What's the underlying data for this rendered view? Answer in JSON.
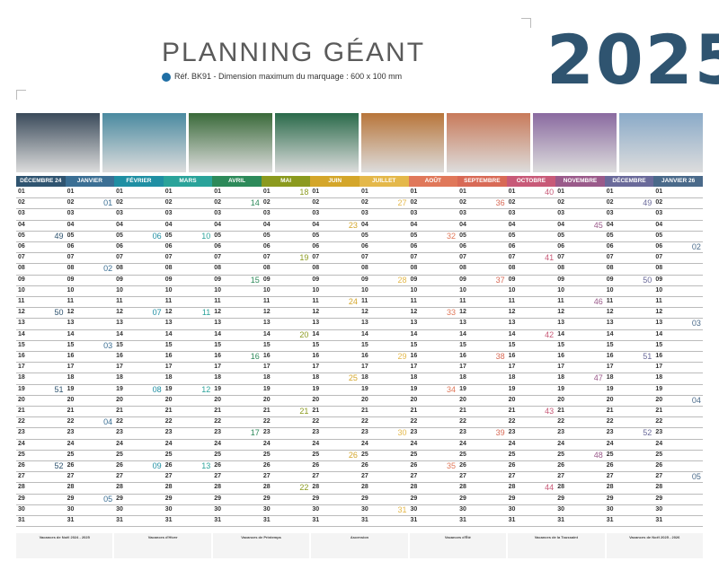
{
  "header": {
    "title": "PLANNING GÉANT",
    "subtitle": "Réf. BK91 - Dimension maximum du marquage : 600 x 100 mm",
    "year": "2025"
  },
  "months": [
    {
      "name": "DÉCEMBRE 24",
      "color": "#2f5470",
      "weeks": [
        {
          "row": 4,
          "n": "49"
        },
        {
          "row": 11,
          "n": "50"
        },
        {
          "row": 18,
          "n": "51"
        },
        {
          "row": 25,
          "n": "52"
        }
      ]
    },
    {
      "name": "JANVIER",
      "color": "#3b6f94",
      "weeks": [
        {
          "row": 1,
          "n": "01"
        },
        {
          "row": 7,
          "n": "02"
        },
        {
          "row": 14,
          "n": "03"
        },
        {
          "row": 21,
          "n": "04"
        },
        {
          "row": 28,
          "n": "05"
        }
      ]
    },
    {
      "name": "FÉVRIER",
      "color": "#1f8fa3",
      "weeks": [
        {
          "row": 4,
          "n": "06"
        },
        {
          "row": 11,
          "n": "07"
        },
        {
          "row": 18,
          "n": "08"
        },
        {
          "row": 25,
          "n": "09"
        }
      ]
    },
    {
      "name": "MARS",
      "color": "#2aa39a",
      "weeks": [
        {
          "row": 4,
          "n": "10"
        },
        {
          "row": 11,
          "n": "11"
        },
        {
          "row": 18,
          "n": "12"
        },
        {
          "row": 25,
          "n": "13"
        }
      ]
    },
    {
      "name": "AVRIL",
      "color": "#2d8a5a",
      "weeks": [
        {
          "row": 1,
          "n": "14"
        },
        {
          "row": 8,
          "n": "15"
        },
        {
          "row": 15,
          "n": "16"
        },
        {
          "row": 22,
          "n": "17"
        }
      ]
    },
    {
      "name": "MAI",
      "color": "#8b9a1e",
      "weeks": [
        {
          "row": 0,
          "n": "18"
        },
        {
          "row": 6,
          "n": "19"
        },
        {
          "row": 13,
          "n": "20"
        },
        {
          "row": 20,
          "n": "21"
        },
        {
          "row": 27,
          "n": "22"
        }
      ]
    },
    {
      "name": "JUIN",
      "color": "#d4a62a",
      "weeks": [
        {
          "row": 3,
          "n": "23"
        },
        {
          "row": 10,
          "n": "24"
        },
        {
          "row": 17,
          "n": "25"
        },
        {
          "row": 24,
          "n": "26"
        }
      ]
    },
    {
      "name": "JUILLET",
      "color": "#e4b84a",
      "weeks": [
        {
          "row": 1,
          "n": "27"
        },
        {
          "row": 8,
          "n": "28"
        },
        {
          "row": 15,
          "n": "29"
        },
        {
          "row": 22,
          "n": "30"
        },
        {
          "row": 29,
          "n": "31"
        }
      ]
    },
    {
      "name": "AOÛT",
      "color": "#e0785a",
      "weeks": [
        {
          "row": 4,
          "n": "32"
        },
        {
          "row": 11,
          "n": "33"
        },
        {
          "row": 18,
          "n": "34"
        },
        {
          "row": 25,
          "n": "35"
        }
      ]
    },
    {
      "name": "SEPTEMBRE",
      "color": "#d86a56",
      "weeks": [
        {
          "row": 1,
          "n": "36"
        },
        {
          "row": 8,
          "n": "37"
        },
        {
          "row": 15,
          "n": "38"
        },
        {
          "row": 22,
          "n": "39"
        }
      ]
    },
    {
      "name": "OCTOBRE",
      "color": "#c85a78",
      "weeks": [
        {
          "row": 0,
          "n": "40"
        },
        {
          "row": 6,
          "n": "41"
        },
        {
          "row": 13,
          "n": "42"
        },
        {
          "row": 20,
          "n": "43"
        },
        {
          "row": 27,
          "n": "44"
        }
      ]
    },
    {
      "name": "NOVEMBRE",
      "color": "#9a5a8a",
      "weeks": [
        {
          "row": 3,
          "n": "45"
        },
        {
          "row": 10,
          "n": "46"
        },
        {
          "row": 17,
          "n": "47"
        },
        {
          "row": 24,
          "n": "48"
        }
      ]
    },
    {
      "name": "DÉCEMBRE",
      "color": "#6a6a9a",
      "weeks": [
        {
          "row": 1,
          "n": "49"
        },
        {
          "row": 8,
          "n": "50"
        },
        {
          "row": 15,
          "n": "51"
        },
        {
          "row": 22,
          "n": "52"
        }
      ]
    },
    {
      "name": "JANVIER 26",
      "color": "#4a6a8a",
      "weeks": [
        {
          "row": 5,
          "n": "02"
        },
        {
          "row": 12,
          "n": "03"
        },
        {
          "row": 19,
          "n": "04"
        },
        {
          "row": 26,
          "n": "05"
        }
      ]
    }
  ],
  "photos": [
    "#3a4a5a",
    "#4a8aa0",
    "#3a6a3a",
    "#2a6a4a",
    "#b8753a",
    "#c87a5a",
    "#8a6aa0",
    "#8aaac8"
  ],
  "footer": [
    {
      "t": "Vacances de Noël 2024 - 2025"
    },
    {
      "t": "Vacances d'Hiver"
    },
    {
      "t": "Vacances de Printemps"
    },
    {
      "t": "Ascension"
    },
    {
      "t": "Vacances d'Été"
    },
    {
      "t": "Vacances de la Toussaint"
    },
    {
      "t": "Vacances de Noël 2025 - 2026"
    }
  ]
}
